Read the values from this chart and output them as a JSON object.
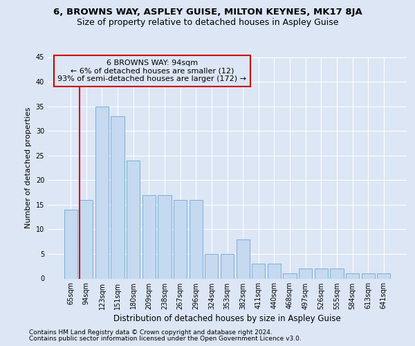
{
  "title1": "6, BROWNS WAY, ASPLEY GUISE, MILTON KEYNES, MK17 8JA",
  "title2": "Size of property relative to detached houses in Aspley Guise",
  "xlabel": "Distribution of detached houses by size in Aspley Guise",
  "ylabel": "Number of detached properties",
  "categories": [
    "65sqm",
    "94sqm",
    "123sqm",
    "151sqm",
    "180sqm",
    "209sqm",
    "238sqm",
    "267sqm",
    "296sqm",
    "324sqm",
    "353sqm",
    "382sqm",
    "411sqm",
    "440sqm",
    "468sqm",
    "497sqm",
    "526sqm",
    "555sqm",
    "584sqm",
    "613sqm",
    "641sqm"
  ],
  "values": [
    14,
    16,
    35,
    33,
    24,
    17,
    17,
    16,
    16,
    5,
    5,
    8,
    3,
    3,
    1,
    2,
    2,
    2,
    1,
    1,
    1
  ],
  "bar_color": "#c5d9f0",
  "bar_edge_color": "#7bafd4",
  "property_bar_index": 1,
  "red_line_color": "#cc0000",
  "annotation_line1": "6 BROWNS WAY: 94sqm",
  "annotation_line2": "← 6% of detached houses are smaller (12)",
  "annotation_line3": "93% of semi-detached houses are larger (172) →",
  "annotation_box_edge": "#cc0000",
  "ylim": [
    0,
    45
  ],
  "yticks": [
    0,
    5,
    10,
    15,
    20,
    25,
    30,
    35,
    40,
    45
  ],
  "background_color": "#dce6f5",
  "grid_color": "#ffffff",
  "title_fontsize": 9.5,
  "subtitle_fontsize": 9,
  "xlabel_fontsize": 8.5,
  "ylabel_fontsize": 8,
  "tick_fontsize": 7,
  "annotation_fontsize": 8,
  "footnote_fontsize": 6.5,
  "footnote1": "Contains HM Land Registry data © Crown copyright and database right 2024.",
  "footnote2": "Contains public sector information licensed under the Open Government Licence v3.0."
}
